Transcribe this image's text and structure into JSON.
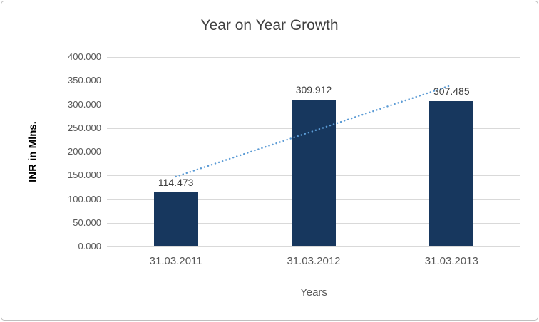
{
  "chart_data": {
    "type": "bar",
    "title": "Year on Year Growth",
    "xlabel": "Years",
    "ylabel": "INR in Mlns.",
    "categories": [
      "31.03.2011",
      "31.03.2012",
      "31.03.2013"
    ],
    "values": [
      114.473,
      309.912,
      307.485
    ],
    "data_labels": [
      "114.473",
      "309.912",
      "307.485"
    ],
    "ylim": [
      0,
      400
    ],
    "ytick_step": 50,
    "ytick_labels": [
      "400.000",
      "350.000",
      "300.000",
      "250.000",
      "200.000",
      "150.000",
      "100.000",
      "50.000",
      "0.000"
    ],
    "grid": true,
    "legend": "none",
    "trendline": {
      "type": "linear",
      "style": "dotted",
      "y_at_first": 147.5,
      "y_at_last": 340.5
    },
    "colors": {
      "bar": "#17375E",
      "trendline": "#5B9BD5",
      "gridline": "#D9D9D9",
      "tick_text": "#595959",
      "title_text": "#404040",
      "value_label_text": "#404040",
      "border": "#BFBFBF",
      "background": "#FFFFFF"
    }
  }
}
